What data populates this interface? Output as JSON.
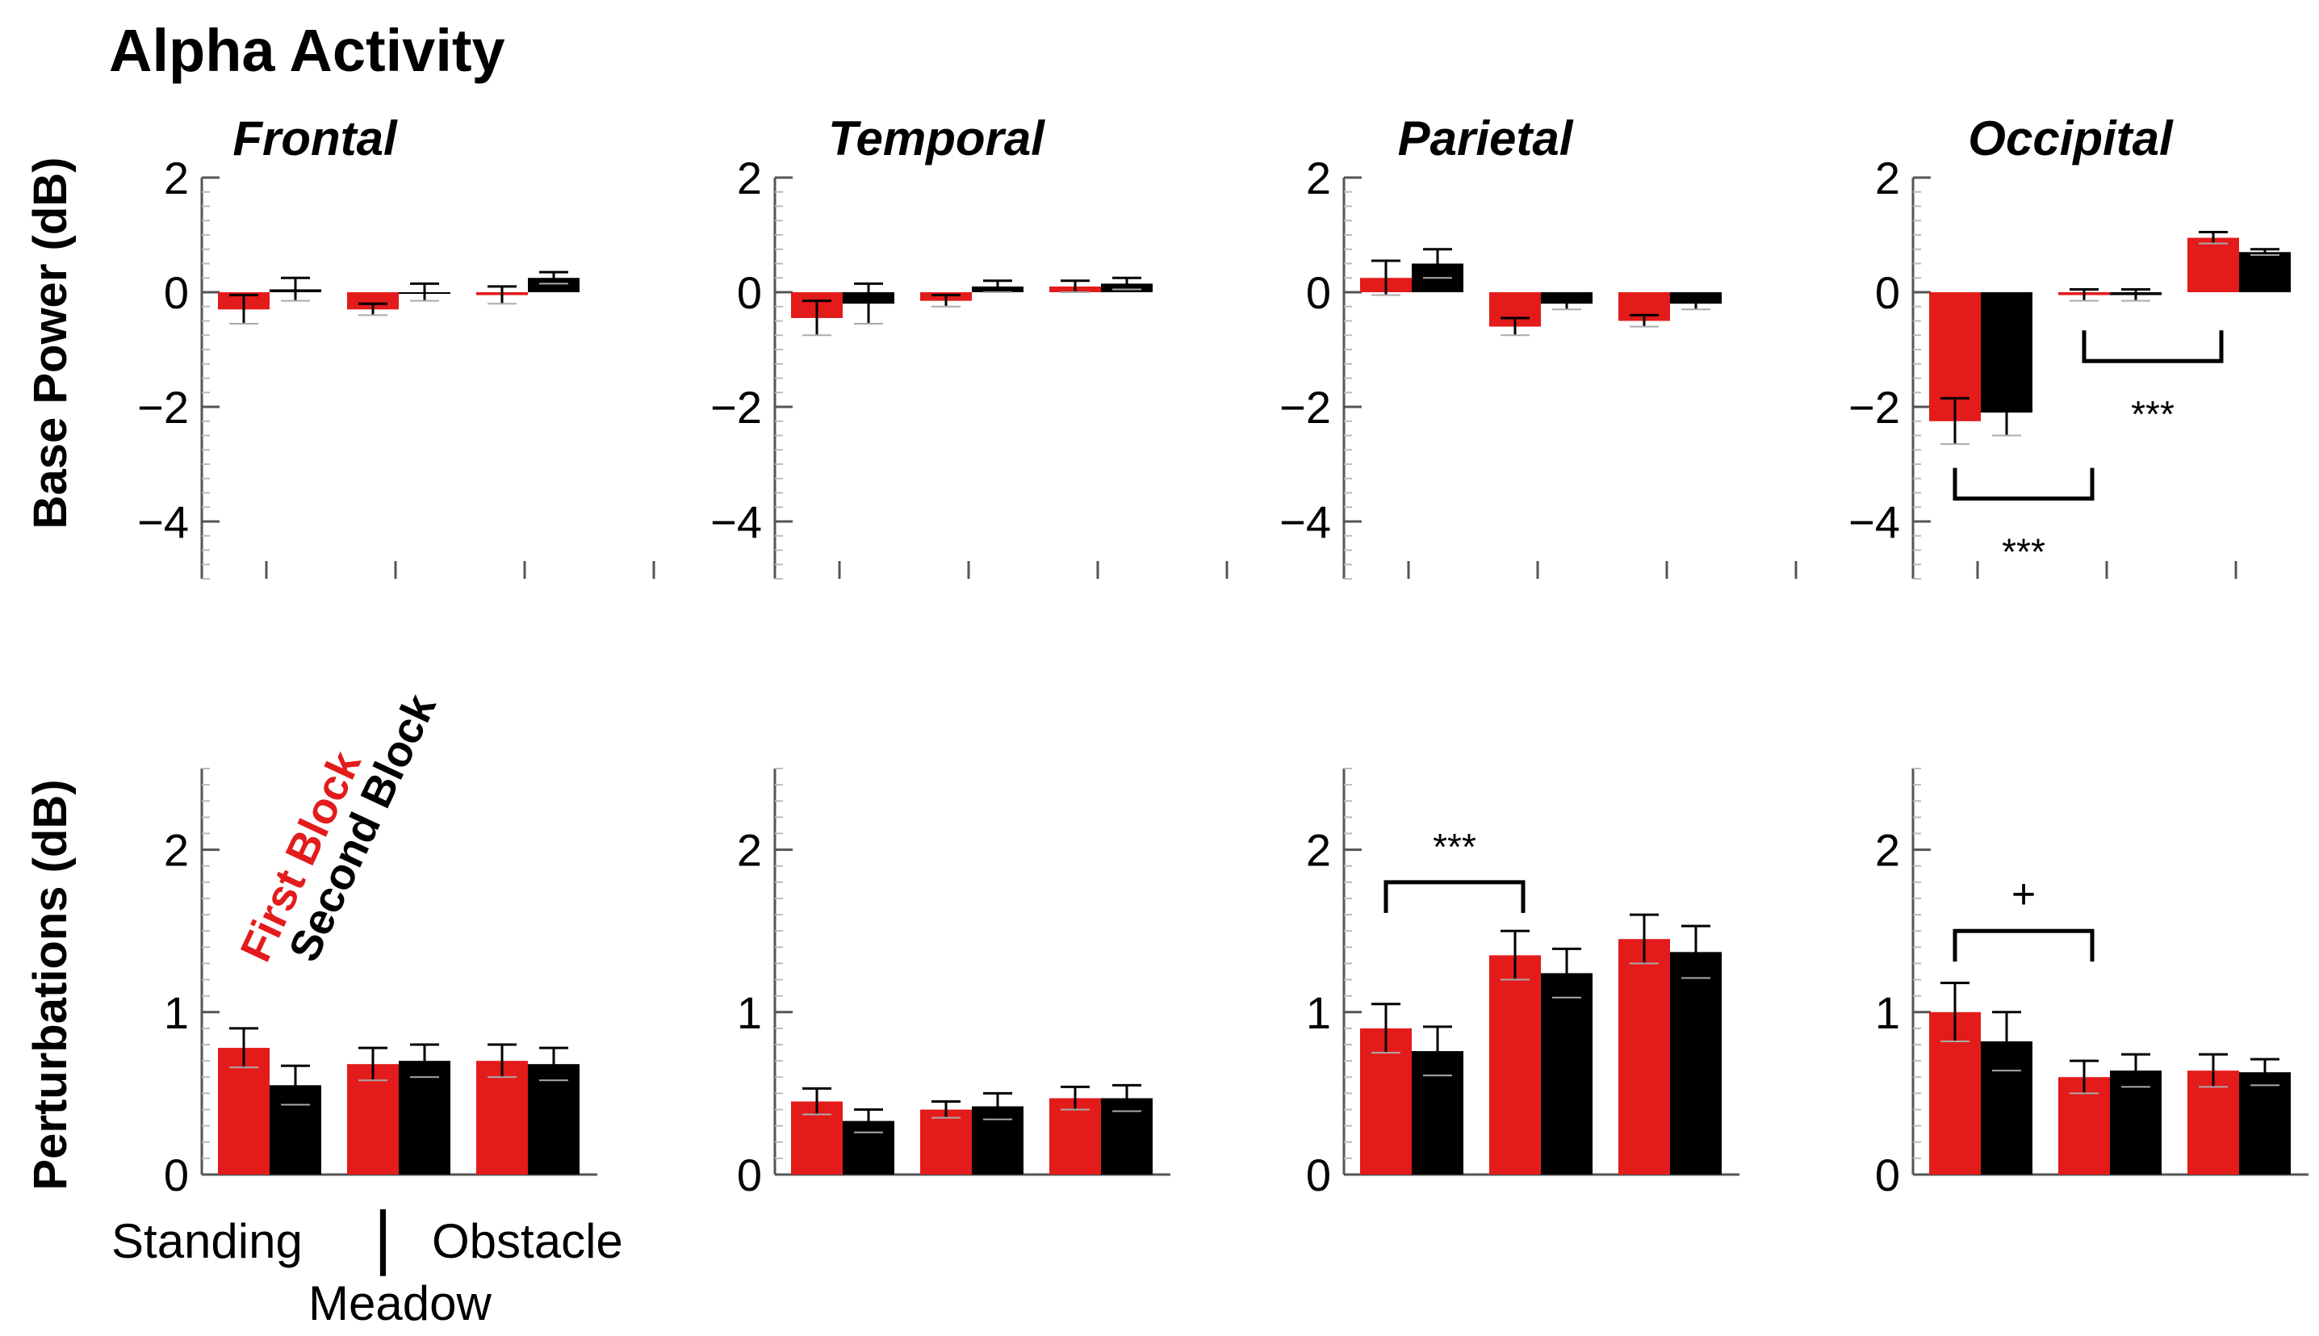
{
  "title": "Alpha Activity",
  "colors": {
    "first": "#e31b1b",
    "second": "#000000",
    "axis": "#555555"
  },
  "legend": {
    "first": "First Block",
    "second": "Second Block"
  },
  "conditions": {
    "standing": "Standing",
    "meadow": "Meadow",
    "obstacle": "Obstacle",
    "separator": "|"
  },
  "chart_data": [
    {
      "type": "bar",
      "region": "Frontal",
      "ylabel": "Base Power (dB)",
      "ylim": [
        -5,
        2
      ],
      "yticks": [
        "2",
        "0",
        "−2",
        "−4"
      ],
      "categories": [
        "Standing",
        "Meadow",
        "Obstacle"
      ],
      "series": [
        {
          "name": "First Block",
          "values": [
            -0.3,
            -0.3,
            -0.05
          ],
          "errors": [
            0.25,
            0.1,
            0.15
          ]
        },
        {
          "name": "Second Block",
          "values": [
            0.05,
            0.0,
            0.25
          ],
          "errors": [
            0.2,
            0.15,
            0.1
          ]
        }
      ],
      "annotations": []
    },
    {
      "type": "bar",
      "region": "Temporal",
      "ylabel": "Base Power (dB)",
      "ylim": [
        -5,
        2
      ],
      "yticks": [
        "2",
        "0",
        "−2",
        "−4"
      ],
      "categories": [
        "Standing",
        "Meadow",
        "Obstacle"
      ],
      "series": [
        {
          "name": "First Block",
          "values": [
            -0.45,
            -0.15,
            0.1
          ],
          "errors": [
            0.3,
            0.1,
            0.1
          ]
        },
        {
          "name": "Second Block",
          "values": [
            -0.2,
            0.1,
            0.15
          ],
          "errors": [
            0.35,
            0.1,
            0.1
          ]
        }
      ],
      "annotations": []
    },
    {
      "type": "bar",
      "region": "Parietal",
      "ylabel": "Base Power (dB)",
      "ylim": [
        -5,
        2
      ],
      "yticks": [
        "2",
        "0",
        "−2",
        "−4"
      ],
      "categories": [
        "Standing",
        "Meadow",
        "Obstacle"
      ],
      "series": [
        {
          "name": "First Block",
          "values": [
            0.25,
            -0.6,
            -0.5
          ],
          "errors": [
            0.3,
            0.15,
            0.1
          ]
        },
        {
          "name": "Second Block",
          "values": [
            0.5,
            -0.2,
            -0.2
          ],
          "errors": [
            0.25,
            0.1,
            0.1
          ]
        }
      ],
      "annotations": []
    },
    {
      "type": "bar",
      "region": "Occipital",
      "ylabel": "Base Power (dB)",
      "ylim": [
        -5,
        2
      ],
      "yticks": [
        "2",
        "0",
        "−2",
        "−4"
      ],
      "categories": [
        "Standing",
        "Meadow",
        "Obstacle"
      ],
      "series": [
        {
          "name": "First Block",
          "values": [
            -2.25,
            -0.05,
            0.95
          ],
          "errors": [
            0.4,
            0.1,
            0.1
          ]
        },
        {
          "name": "Second Block",
          "values": [
            -2.1,
            -0.05,
            0.7
          ],
          "errors": [
            0.4,
            0.1,
            0.05
          ]
        }
      ],
      "annotations": [
        {
          "text": "***",
          "from": 0,
          "to": 1,
          "level": -3.6
        },
        {
          "text": "***",
          "from": 1,
          "to": 2,
          "level": -1.2
        }
      ]
    },
    {
      "type": "bar",
      "region": "Frontal",
      "ylabel": "Perturbations (dB)",
      "ylim": [
        0,
        2.5
      ],
      "yticks": [
        "2",
        "1",
        "0"
      ],
      "categories": [
        "Standing",
        "Meadow",
        "Obstacle"
      ],
      "series": [
        {
          "name": "First Block",
          "values": [
            0.78,
            0.68,
            0.7
          ],
          "errors": [
            0.12,
            0.1,
            0.1
          ]
        },
        {
          "name": "Second Block",
          "values": [
            0.55,
            0.7,
            0.68
          ],
          "errors": [
            0.12,
            0.1,
            0.1
          ]
        }
      ],
      "annotations": []
    },
    {
      "type": "bar",
      "region": "Temporal",
      "ylabel": "Perturbations (dB)",
      "ylim": [
        0,
        2.5
      ],
      "yticks": [
        "2",
        "1",
        "0"
      ],
      "categories": [
        "Standing",
        "Meadow",
        "Obstacle"
      ],
      "series": [
        {
          "name": "First Block",
          "values": [
            0.45,
            0.4,
            0.47
          ],
          "errors": [
            0.08,
            0.05,
            0.07
          ]
        },
        {
          "name": "Second Block",
          "values": [
            0.33,
            0.42,
            0.47
          ],
          "errors": [
            0.07,
            0.08,
            0.08
          ]
        }
      ],
      "annotations": []
    },
    {
      "type": "bar",
      "region": "Parietal",
      "ylabel": "Perturbations (dB)",
      "ylim": [
        0,
        2.5
      ],
      "yticks": [
        "2",
        "1",
        "0"
      ],
      "categories": [
        "Standing",
        "Meadow",
        "Obstacle"
      ],
      "series": [
        {
          "name": "First Block",
          "values": [
            0.9,
            1.35,
            1.45
          ],
          "errors": [
            0.15,
            0.15,
            0.15
          ]
        },
        {
          "name": "Second Block",
          "values": [
            0.76,
            1.24,
            1.37
          ],
          "errors": [
            0.15,
            0.15,
            0.16
          ]
        }
      ],
      "annotations": [
        {
          "text": "***",
          "from": 0,
          "to": 1,
          "level": 1.8
        }
      ]
    },
    {
      "type": "bar",
      "region": "Occipital",
      "ylabel": "Perturbations (dB)",
      "ylim": [
        0,
        2.5
      ],
      "yticks": [
        "2",
        "1",
        "0"
      ],
      "categories": [
        "Standing",
        "Meadow",
        "Obstacle"
      ],
      "series": [
        {
          "name": "First Block",
          "values": [
            1.0,
            0.6,
            0.64
          ],
          "errors": [
            0.18,
            0.1,
            0.1
          ]
        },
        {
          "name": "Second Block",
          "values": [
            0.82,
            0.64,
            0.63
          ],
          "errors": [
            0.18,
            0.1,
            0.08
          ]
        }
      ],
      "annotations": [
        {
          "text": "+",
          "from": 0,
          "to": 1,
          "level": 1.5
        }
      ]
    }
  ]
}
